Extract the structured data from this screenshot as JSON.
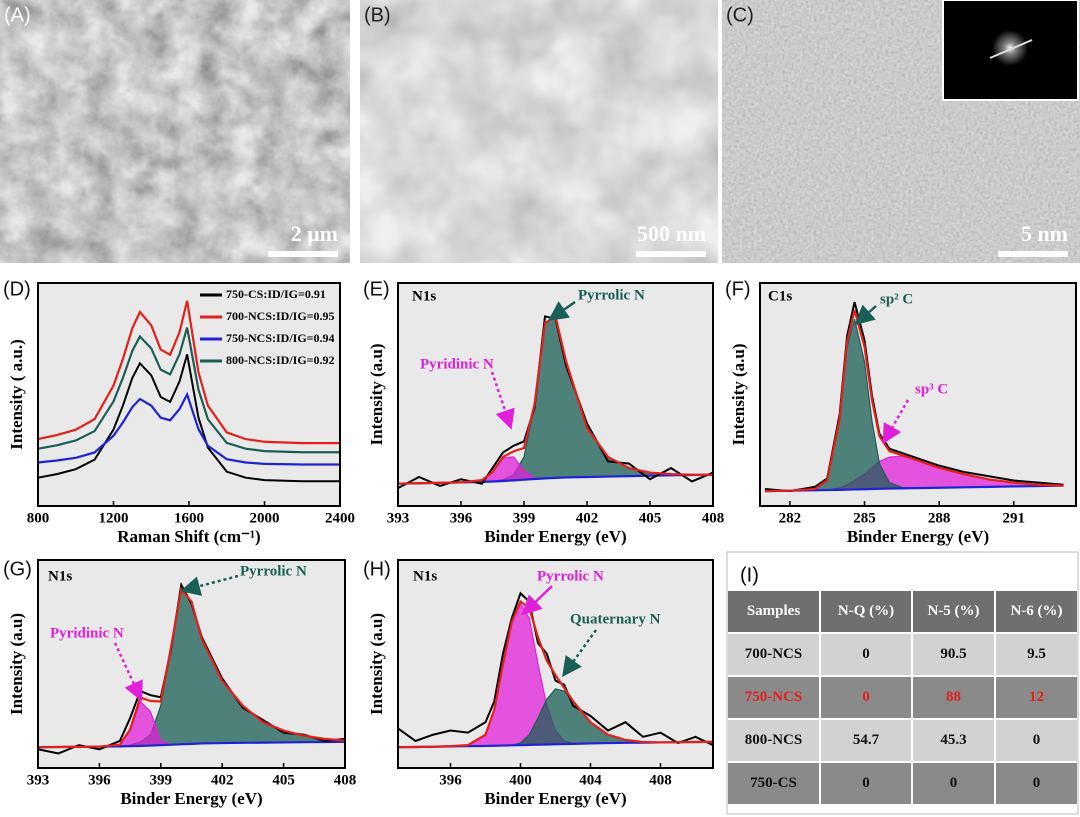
{
  "panels": [
    {
      "label": "(A)",
      "scale_bar": "2 μm"
    },
    {
      "label": "(B)",
      "scale_bar": "500 nm"
    },
    {
      "label": "(C)",
      "scale_bar": "5 nm"
    }
  ],
  "chart_data": [
    {
      "type": "line",
      "label": "(D)",
      "xlabel": "Raman Shift (cm⁻¹)",
      "ylabel": "Intensity ( a.u.)",
      "xlim": [
        800,
        2400
      ],
      "xticks": [
        800,
        1200,
        1600,
        2000,
        2400
      ],
      "ylim": [
        0,
        100
      ],
      "legend": "top-right",
      "x": [
        800,
        900,
        1000,
        1100,
        1200,
        1250,
        1300,
        1340,
        1400,
        1450,
        1500,
        1550,
        1590,
        1650,
        1700,
        1800,
        1900,
        2000,
        2200,
        2400
      ],
      "series": [
        {
          "name": "750-CS:ID/IG=0.91",
          "color": "#000000",
          "values": [
            12.7,
            14.3,
            16.5,
            20.8,
            34.3,
            45.1,
            57.5,
            64,
            58.6,
            48.9,
            46.7,
            55.9,
            68,
            39.7,
            26.2,
            15.4,
            12.7,
            11.6,
            11.1,
            11.1
          ]
        },
        {
          "name": "700-NCS:ID/IG=0.95",
          "color": "#e3201b",
          "values": [
            30,
            31.8,
            34.2,
            39,
            54,
            66,
            79.8,
            87,
            81,
            70.2,
            67.8,
            78,
            92,
            60,
            45,
            33,
            30,
            28.8,
            28.2,
            28.2
          ]
        },
        {
          "name": "750-NCS:ID/IG=0.94",
          "color": "#1f23d6",
          "values": [
            19.5,
            20.4,
            21.6,
            24,
            31.5,
            37.5,
            44.4,
            48,
            45,
            39.6,
            38.4,
            43.5,
            50,
            34.5,
            27,
            21,
            19.5,
            18.9,
            18.6,
            18.6
          ]
        },
        {
          "name": "800-NCS:ID/IG=0.92",
          "color": "#1b5e55",
          "values": [
            25.7,
            27.2,
            29.4,
            33.6,
            46.9,
            57.5,
            69.6,
            76,
            70.7,
            61.2,
            59,
            68.1,
            80,
            52.2,
            38.9,
            28.3,
            25.7,
            24.6,
            24.1,
            24.1
          ]
        }
      ]
    },
    {
      "type": "xps",
      "label": "(E)",
      "xlabel": "Binder Energy (eV)",
      "ylabel": "Intensity (a.u)",
      "xlim": [
        393,
        408
      ],
      "xticks": [
        393,
        396,
        399,
        402,
        405,
        408
      ],
      "ylim": [
        0,
        100
      ],
      "annotations": [
        {
          "text": "N1s",
          "color": "#000000"
        },
        {
          "text": "Pyrrolic N",
          "color": "#1b5e55"
        },
        {
          "text": "Pyridinic N",
          "color": "#e020d8"
        }
      ],
      "x": [
        393,
        394,
        395,
        396,
        397,
        397.5,
        398,
        398.5,
        399,
        399.5,
        400,
        400.5,
        401,
        402,
        403,
        404,
        405,
        406,
        407,
        408
      ],
      "series": [
        {
          "color": "#1b5e55",
          "fill": true,
          "values": [
            10,
            10.2,
            10.4,
            10.6,
            10.9,
            11.2,
            11.8,
            14,
            22,
            45,
            82,
            85,
            65,
            35,
            22,
            17,
            15,
            14.3,
            14,
            14
          ]
        },
        {
          "color": "#e020d8",
          "fill": true,
          "values": [
            10,
            10.2,
            10.4,
            10.6,
            11.5,
            15,
            21.5,
            22,
            16,
            12.5,
            12.4,
            12.6,
            12.8,
            13,
            13.2,
            13.4,
            13.6,
            13.8,
            13.9,
            14
          ]
        },
        {
          "color": "#1f23d6",
          "values": [
            10,
            10.2,
            10.4,
            10.6,
            10.8,
            11,
            11.2,
            11.5,
            11.8,
            12.1,
            12.4,
            12.6,
            12.8,
            13,
            13.2,
            13.4,
            13.6,
            13.8,
            13.9,
            14
          ]
        },
        {
          "color": "#000000",
          "values": [
            8,
            13,
            9,
            12,
            10,
            17,
            24,
            27,
            29,
            44,
            85,
            84,
            63,
            37,
            20,
            19,
            12,
            17,
            11,
            15
          ]
        },
        {
          "color": "#e3201b",
          "values": [
            10,
            10.2,
            10.4,
            10.6,
            11.6,
            15.2,
            22,
            24.5,
            26,
            45.5,
            82,
            85,
            65,
            35,
            22,
            17,
            15,
            14.3,
            14,
            14
          ]
        }
      ]
    },
    {
      "type": "xps",
      "label": "(F)",
      "xlabel": "Binder Energy (eV)",
      "ylabel": "Intensity (a.u)",
      "xlim": [
        280.8,
        293.5
      ],
      "xticks": [
        282,
        285,
        288,
        291
      ],
      "ylim": [
        0,
        105
      ],
      "annotations": [
        {
          "text": "C1s",
          "color": "#000000"
        },
        {
          "text": "sp² C",
          "color": "#1b5e55"
        },
        {
          "text": "sp³ C",
          "color": "#e020d8"
        }
      ],
      "x": [
        281,
        282,
        283,
        283.5,
        284,
        284.3,
        284.6,
        285,
        285.3,
        285.6,
        286,
        286.5,
        287,
        288,
        289,
        290,
        291,
        292,
        293
      ],
      "series": [
        {
          "color": "#e020d8",
          "fill": true,
          "values": [
            7,
            7.2,
            7.4,
            7.6,
            8.5,
            10,
            12,
            15,
            18,
            21,
            23,
            23.5,
            22,
            18,
            15,
            12.5,
            11,
            10,
            9.6
          ]
        },
        {
          "color": "#1b5e55",
          "fill": true,
          "values": [
            7,
            7.2,
            8,
            12,
            40,
            75,
            88,
            68,
            40,
            20,
            11,
            8.8,
            8.4,
            8.6,
            8.8,
            9,
            9.2,
            9.4,
            9.6
          ]
        },
        {
          "color": "#1f23d6",
          "values": [
            7,
            7.2,
            7.4,
            7.5,
            7.6,
            7.7,
            7.8,
            7.9,
            8,
            8.1,
            8.2,
            8.3,
            8.4,
            8.6,
            8.8,
            9,
            9.2,
            9.4,
            9.6
          ]
        },
        {
          "color": "#000000",
          "values": [
            8,
            7,
            9,
            13,
            43,
            80,
            96,
            78,
            52,
            34,
            27,
            25,
            23,
            19,
            16,
            14,
            12,
            11,
            10
          ]
        },
        {
          "color": "#e3201b",
          "values": [
            7,
            7.2,
            8,
            12.1,
            40.9,
            77.3,
            92.2,
            75.1,
            50,
            32.9,
            25.8,
            24,
            22,
            18,
            15,
            12.5,
            11,
            10,
            9.6
          ]
        }
      ]
    },
    {
      "type": "xps",
      "label": "(G)",
      "xlabel": "Binder Energy (eV)",
      "ylabel": "Intensity (a.u)",
      "xlim": [
        393,
        408
      ],
      "xticks": [
        393,
        396,
        399,
        402,
        405,
        408
      ],
      "ylim": [
        0,
        100
      ],
      "annotations": [
        {
          "text": "N1s",
          "color": "#000000"
        },
        {
          "text": "Pyrrolic N",
          "color": "#1b5e55"
        },
        {
          "text": "Pyridinic N",
          "color": "#e020d8"
        }
      ],
      "x": [
        393,
        394,
        395,
        396,
        397,
        397.5,
        398,
        398.5,
        399,
        399.5,
        400,
        400.5,
        401,
        402,
        403,
        404,
        405,
        406,
        407,
        408
      ],
      "series": [
        {
          "color": "#1b5e55",
          "fill": true,
          "values": [
            10,
            10.1,
            10.2,
            10.3,
            10.6,
            11,
            12.5,
            16,
            30,
            58,
            86,
            80,
            62,
            42,
            30,
            22,
            18,
            15.5,
            14,
            13.2
          ]
        },
        {
          "color": "#e020d8",
          "fill": true,
          "values": [
            10,
            10.1,
            10.2,
            10.3,
            11,
            18,
            32,
            27,
            13,
            11.3,
            11.4,
            11.6,
            11.8,
            12,
            12.1,
            12.2,
            12.3,
            12.4,
            12.5,
            12.6
          ]
        },
        {
          "color": "#1f23d6",
          "values": [
            10,
            10.1,
            10.2,
            10.3,
            10.4,
            10.5,
            10.6,
            10.8,
            11,
            11.2,
            11.4,
            11.6,
            11.8,
            12,
            12.1,
            12.2,
            12.3,
            12.4,
            12.5,
            12.6
          ]
        },
        {
          "color": "#000000",
          "values": [
            9,
            7,
            11,
            9,
            13,
            24,
            37,
            35,
            34,
            57,
            88,
            79,
            63,
            43,
            29,
            23,
            17,
            16,
            13,
            14
          ]
        },
        {
          "color": "#e3201b",
          "values": [
            10,
            10.1,
            10.2,
            10.3,
            11.2,
            18.5,
            33.9,
            32.2,
            32,
            58.1,
            86,
            80,
            62,
            42,
            30,
            22,
            18,
            15.5,
            14,
            13.2
          ]
        }
      ]
    },
    {
      "type": "xps",
      "label": "(H)",
      "xlabel": "Binder Energy (eV)",
      "ylabel": "Intensity (a.u)",
      "xlim": [
        393,
        411
      ],
      "xticks": [
        396,
        400,
        404,
        408
      ],
      "ylim": [
        0,
        100
      ],
      "annotations": [
        {
          "text": "N1s",
          "color": "#000000"
        },
        {
          "text": "Pyrrolic N",
          "color": "#e020d8"
        },
        {
          "text": "Quaternary N",
          "color": "#1b5e55"
        }
      ],
      "x": [
        393,
        394,
        395,
        396,
        397,
        398,
        398.5,
        399,
        399.5,
        400,
        400.5,
        401,
        401.5,
        402,
        402.5,
        403,
        404,
        405,
        406,
        407,
        408,
        409,
        410,
        411
      ],
      "series": [
        {
          "color": "#e020d8",
          "fill": true,
          "values": [
            10,
            10.1,
            10.2,
            10.5,
            11,
            16,
            28,
            50,
            70,
            79,
            72,
            50,
            30,
            18,
            13,
            11.8,
            11.8,
            12,
            12.1,
            12.2,
            12.3,
            12.4,
            12.5,
            12.6
          ]
        },
        {
          "color": "#1b5e55",
          "fill": true,
          "values": [
            10,
            10.1,
            10.2,
            10.4,
            10.5,
            10.6,
            10.7,
            10.8,
            11,
            12,
            16,
            24,
            33,
            38,
            37,
            32,
            22,
            16,
            13.5,
            12.5,
            12.3,
            12.4,
            12.5,
            12.6
          ]
        },
        {
          "color": "#1f23d6",
          "values": [
            10,
            10.1,
            10.2,
            10.4,
            10.5,
            10.6,
            10.7,
            10.8,
            10.9,
            11,
            11.1,
            11.2,
            11.3,
            11.4,
            11.5,
            11.6,
            11.8,
            12,
            12.1,
            12.2,
            12.3,
            12.4,
            12.5,
            12.6
          ]
        },
        {
          "color": "#000000",
          "values": [
            19,
            13,
            16,
            18,
            17,
            22,
            32,
            55,
            72,
            84,
            80,
            60,
            55,
            42,
            40,
            30,
            25,
            18,
            22,
            15,
            17,
            12,
            15,
            11
          ]
        },
        {
          "color": "#e3201b",
          "values": [
            10,
            10.1,
            10.2,
            10.5,
            11,
            16,
            28,
            50,
            70.1,
            80,
            76.9,
            62.8,
            51.7,
            44.6,
            38.5,
            32.2,
            22,
            16,
            13.5,
            12.5,
            12.3,
            12.4,
            12.5,
            12.6
          ]
        }
      ]
    }
  ],
  "table": {
    "label": "(I)",
    "header": [
      "Samples",
      "N-Q (%)",
      "N-5 (%)",
      "N-6 (%)"
    ],
    "rows": [
      [
        "700-NCS",
        0,
        90.5,
        9.5
      ],
      [
        "750-NCS",
        0,
        88,
        12
      ],
      [
        "800-NCS",
        54.7,
        45.3,
        0
      ],
      [
        "750-CS",
        0,
        0,
        0
      ]
    ]
  }
}
